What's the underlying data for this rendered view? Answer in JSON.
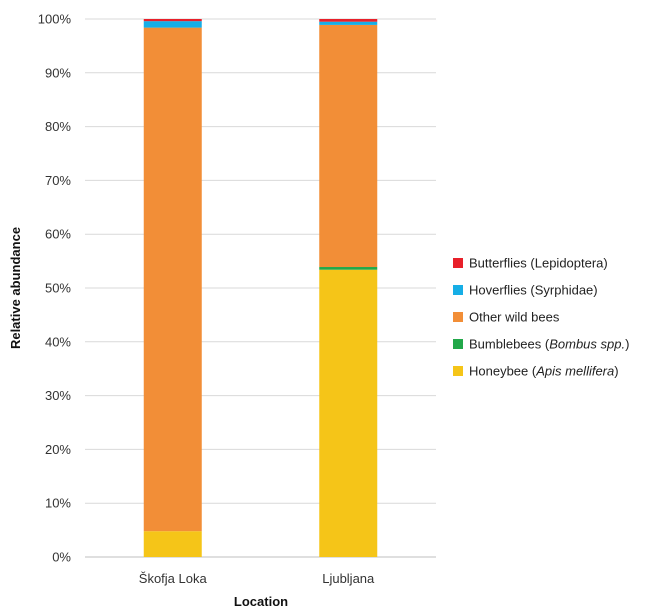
{
  "chart_data": {
    "type": "bar",
    "stacked": true,
    "title": "",
    "xlabel": "Location",
    "ylabel": "Relative abundance",
    "ylim": [
      0,
      100
    ],
    "y_ticks": [
      "0%",
      "10%",
      "20%",
      "30%",
      "40%",
      "50%",
      "60%",
      "70%",
      "80%",
      "90%",
      "100%"
    ],
    "categories": [
      "Škofja Loka",
      "Ljubljana"
    ],
    "grid": true,
    "legend_position": "right",
    "series": [
      {
        "name": "Honeybee (Apis mellifera)",
        "legend_parts": [
          "Honeybee (",
          "Apis mellifera",
          ")"
        ],
        "color": "#F5C518",
        "values": [
          4.8,
          53.4
        ]
      },
      {
        "name": "Bumblebees (Bombus spp.)",
        "legend_parts": [
          "Bumblebees (",
          "Bombus spp.",
          ")"
        ],
        "color": "#22A84A",
        "values": [
          0.0,
          0.5
        ]
      },
      {
        "name": "Other wild bees",
        "legend_parts": [
          "Other wild bees",
          "",
          ""
        ],
        "color": "#F28E37",
        "values": [
          93.6,
          45.0
        ]
      },
      {
        "name": "Hoverflies (Syrphidae)",
        "legend_parts": [
          "Hoverflies (Syrphidae)",
          "",
          ""
        ],
        "color": "#16AEE6",
        "values": [
          1.2,
          0.6
        ]
      },
      {
        "name": "Butterflies (Lepidoptera)",
        "legend_parts": [
          "Butterflies (Lepidoptera)",
          "",
          ""
        ],
        "color": "#E8202A",
        "values": [
          0.4,
          0.5
        ]
      }
    ]
  }
}
